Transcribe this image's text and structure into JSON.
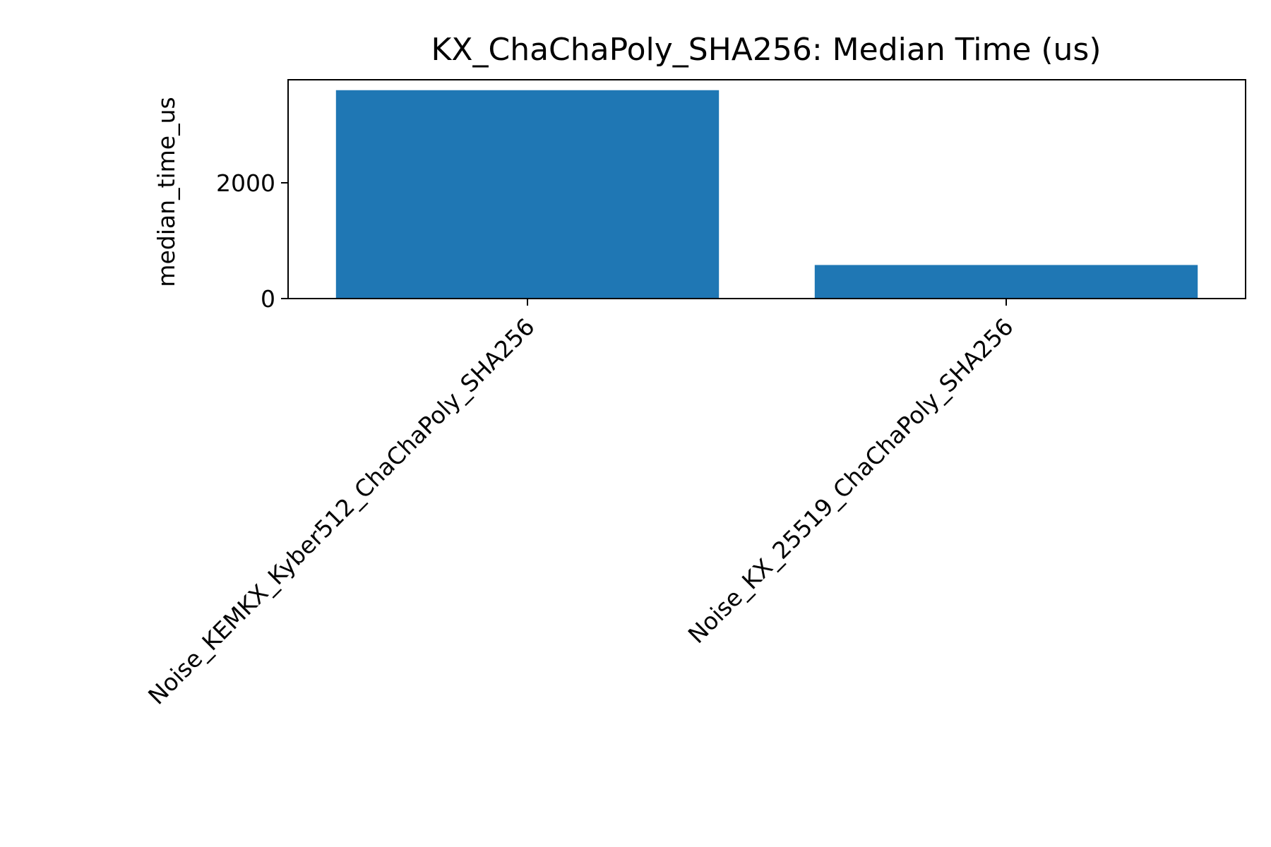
{
  "chart_data": {
    "type": "bar",
    "title": "KX_ChaChaPoly_SHA256: Median Time (us)",
    "xlabel": "",
    "ylabel": "median_time_us",
    "categories": [
      "Noise_KEMKX_Kyber512_ChaChaPoly_SHA256",
      "Noise_KX_25519_ChaChaPoly_SHA256"
    ],
    "values": [
      3600,
      580
    ],
    "ylim": [
      0,
      3780
    ],
    "yticks": [
      0,
      2000
    ],
    "grid": false,
    "legend": "none",
    "bar_color": "#1f77b4"
  }
}
